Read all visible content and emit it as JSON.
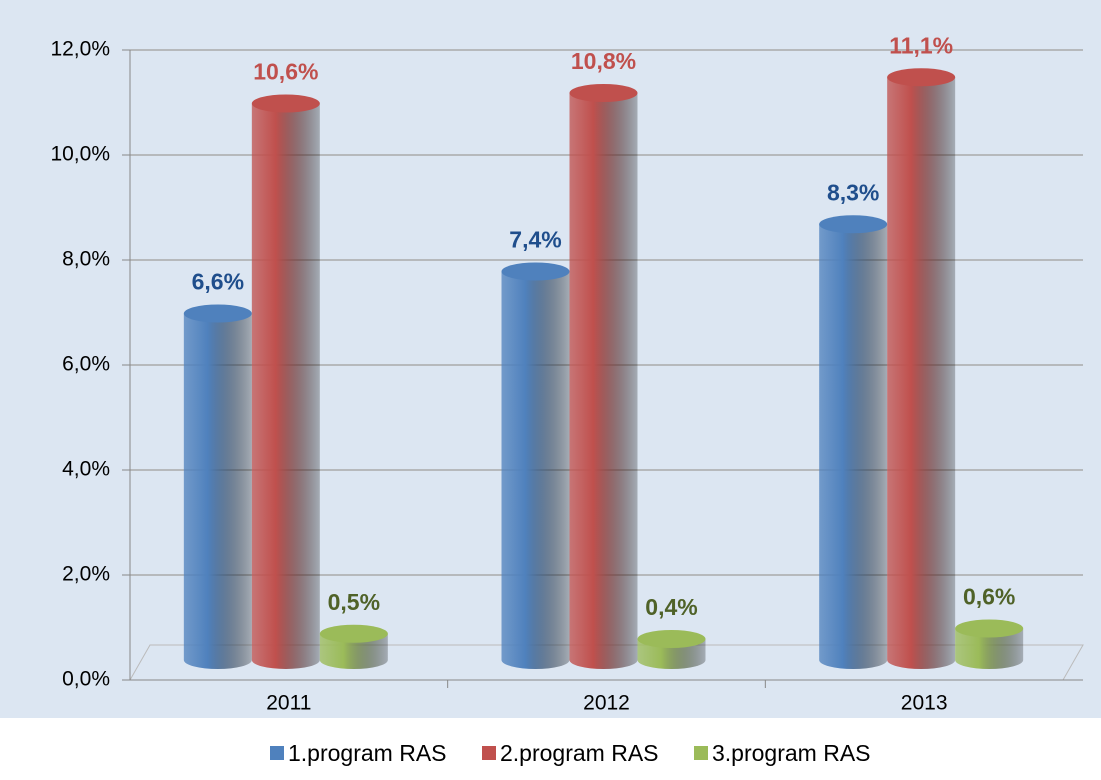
{
  "chart_data": {
    "type": "bar3d",
    "categories": [
      "2011",
      "2012",
      "2013"
    ],
    "series": [
      {
        "name": "1.program RAS",
        "color": "#4f81bd",
        "label_color": "#1f4e8c",
        "values": [
          6.6,
          7.4,
          8.3
        ],
        "value_labels": [
          "6,6%",
          "7,4%",
          "8,3%"
        ]
      },
      {
        "name": "2.program RAS",
        "color": "#c0504d",
        "label_color": "#c0504d",
        "values": [
          10.6,
          10.8,
          11.1
        ],
        "value_labels": [
          "10,6%",
          "10,8%",
          "11,1%"
        ]
      },
      {
        "name": "3.program RAS",
        "color": "#9bbb59",
        "label_color": "#4f6228",
        "values": [
          0.5,
          0.4,
          0.6
        ],
        "value_labels": [
          "0,5%",
          "0,4%",
          "0,6%"
        ]
      }
    ],
    "ylim": [
      0,
      12
    ],
    "yticks": [
      {
        "value": 0,
        "label": "0,0%"
      },
      {
        "value": 2,
        "label": "2,0%"
      },
      {
        "value": 4,
        "label": "4,0%"
      },
      {
        "value": 6,
        "label": "6,0%"
      },
      {
        "value": 8,
        "label": "8,0%"
      },
      {
        "value": 10,
        "label": "10,0%"
      },
      {
        "value": 12,
        "label": "12,0%"
      }
    ],
    "grid": true,
    "legend": "bottom"
  }
}
